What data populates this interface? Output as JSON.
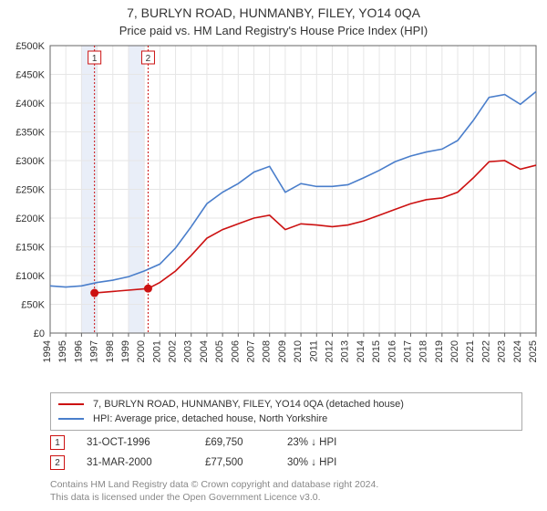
{
  "title_main": "7, BURLYN ROAD, HUNMANBY, FILEY, YO14 0QA",
  "title_sub": "Price paid vs. HM Land Registry's House Price Index (HPI)",
  "chart": {
    "type": "line",
    "plot_bg": "#ffffff",
    "grid_color": "#e6e6e6",
    "axis_color": "#666666",
    "x_min": 1994,
    "x_max": 2025,
    "y_min": 0,
    "y_max": 500000,
    "y_ticks": [
      0,
      50000,
      100000,
      150000,
      200000,
      250000,
      300000,
      350000,
      400000,
      450000,
      500000
    ],
    "y_tick_labels": [
      "£0",
      "£50K",
      "£100K",
      "£150K",
      "£200K",
      "£250K",
      "£300K",
      "£350K",
      "£400K",
      "£450K",
      "£500K"
    ],
    "x_ticks": [
      1994,
      1995,
      1996,
      1997,
      1998,
      1999,
      2000,
      2001,
      2002,
      2003,
      2004,
      2005,
      2006,
      2007,
      2008,
      2009,
      2010,
      2011,
      2012,
      2013,
      2014,
      2015,
      2016,
      2017,
      2018,
      2019,
      2020,
      2021,
      2022,
      2023,
      2024,
      2025
    ],
    "series": [
      {
        "id": "price_paid",
        "label": "7, BURLYN ROAD, HUNMANBY, FILEY, YO14 0QA (detached house)",
        "color": "#cc1111",
        "line_width": 1.6,
        "data": [
          [
            1996.83,
            69750
          ],
          [
            2000.25,
            77500
          ],
          [
            2001,
            88000
          ],
          [
            2002,
            108000
          ],
          [
            2003,
            135000
          ],
          [
            2004,
            165000
          ],
          [
            2005,
            180000
          ],
          [
            2006,
            190000
          ],
          [
            2007,
            200000
          ],
          [
            2008,
            205000
          ],
          [
            2009,
            180000
          ],
          [
            2010,
            190000
          ],
          [
            2011,
            188000
          ],
          [
            2012,
            185000
          ],
          [
            2013,
            188000
          ],
          [
            2014,
            195000
          ],
          [
            2015,
            205000
          ],
          [
            2016,
            215000
          ],
          [
            2017,
            225000
          ],
          [
            2018,
            232000
          ],
          [
            2019,
            235000
          ],
          [
            2020,
            245000
          ],
          [
            2021,
            270000
          ],
          [
            2022,
            298000
          ],
          [
            2023,
            300000
          ],
          [
            2024,
            285000
          ],
          [
            2025,
            292000
          ]
        ]
      },
      {
        "id": "hpi",
        "label": "HPI: Average price, detached house, North Yorkshire",
        "color": "#4a7ecb",
        "line_width": 1.6,
        "data": [
          [
            1994,
            82000
          ],
          [
            1995,
            80000
          ],
          [
            1996,
            82000
          ],
          [
            1997,
            88000
          ],
          [
            1998,
            92000
          ],
          [
            1999,
            98000
          ],
          [
            2000,
            108000
          ],
          [
            2001,
            120000
          ],
          [
            2002,
            148000
          ],
          [
            2003,
            185000
          ],
          [
            2004,
            225000
          ],
          [
            2005,
            245000
          ],
          [
            2006,
            260000
          ],
          [
            2007,
            280000
          ],
          [
            2008,
            290000
          ],
          [
            2009,
            245000
          ],
          [
            2010,
            260000
          ],
          [
            2011,
            255000
          ],
          [
            2012,
            255000
          ],
          [
            2013,
            258000
          ],
          [
            2014,
            270000
          ],
          [
            2015,
            283000
          ],
          [
            2016,
            298000
          ],
          [
            2017,
            308000
          ],
          [
            2018,
            315000
          ],
          [
            2019,
            320000
          ],
          [
            2020,
            335000
          ],
          [
            2021,
            370000
          ],
          [
            2022,
            410000
          ],
          [
            2023,
            415000
          ],
          [
            2024,
            398000
          ],
          [
            2025,
            420000
          ]
        ]
      }
    ],
    "shade_bands": [
      {
        "x_from": 1996,
        "x_to": 1997,
        "fill": "#e9eef8"
      },
      {
        "x_from": 1999,
        "x_to": 2000,
        "fill": "#e9eef8"
      }
    ],
    "event_lines": [
      {
        "x": 1996.83,
        "color": "#cc1111",
        "label": "1"
      },
      {
        "x": 2000.25,
        "color": "#cc1111",
        "label": "2"
      }
    ],
    "markers": [
      {
        "x": 1996.83,
        "y": 69750,
        "color": "#cc1111"
      },
      {
        "x": 2000.25,
        "y": 77500,
        "color": "#cc1111"
      }
    ]
  },
  "legend": {
    "items": [
      {
        "color": "#cc1111",
        "text": "7, BURLYN ROAD, HUNMANBY, FILEY, YO14 0QA (detached house)"
      },
      {
        "color": "#4a7ecb",
        "text": "HPI: Average price, detached house, North Yorkshire"
      }
    ]
  },
  "transactions": [
    {
      "marker": "1",
      "marker_color": "#cc1111",
      "date": "31-OCT-1996",
      "price": "£69,750",
      "pct": "23% ↓ HPI"
    },
    {
      "marker": "2",
      "marker_color": "#cc1111",
      "date": "31-MAR-2000",
      "price": "£77,500",
      "pct": "30% ↓ HPI"
    }
  ],
  "footer_line1": "Contains HM Land Registry data © Crown copyright and database right 2024.",
  "footer_line2": "This data is licensed under the Open Government Licence v3.0."
}
